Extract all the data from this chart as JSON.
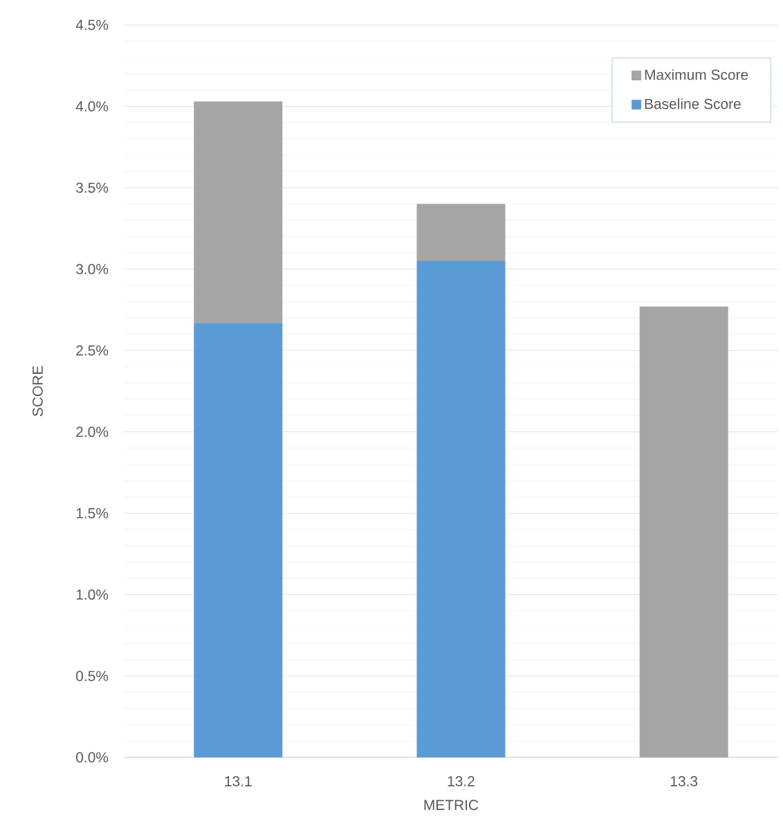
{
  "chart_data": {
    "type": "bar",
    "stacked": true,
    "xlabel": "METRIC",
    "ylabel": "SCORE",
    "categories": [
      "13.1",
      "13.2",
      "13.3"
    ],
    "series": [
      {
        "name": "Baseline Score",
        "color": "#5b9bd5",
        "values": [
          2.67,
          3.05,
          null
        ]
      },
      {
        "name": "Maximum Score",
        "color": "#a5a5a5",
        "values": [
          1.36,
          0.35,
          2.77
        ]
      }
    ],
    "ylim": [
      0,
      4.5
    ],
    "yticks": [
      {
        "value": 0,
        "label": "0.0%"
      },
      {
        "value": 0.5,
        "label": "0.5%"
      },
      {
        "value": 1,
        "label": "1.0%"
      },
      {
        "value": 1.5,
        "label": "1.5%"
      },
      {
        "value": 2,
        "label": "2.0%"
      },
      {
        "value": 2.5,
        "label": "2.5%"
      },
      {
        "value": 3,
        "label": "3.0%"
      },
      {
        "value": 3.5,
        "label": "3.5%"
      },
      {
        "value": 4,
        "label": "4.0%"
      },
      {
        "value": 4.5,
        "label": "4.5%"
      }
    ],
    "grid": "y",
    "legend": "top right"
  }
}
